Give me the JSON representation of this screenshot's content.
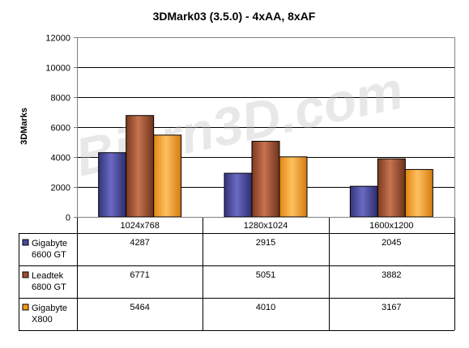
{
  "watermark": "Bjorn3D.com",
  "chart_data": {
    "type": "bar",
    "title": "3DMark03 (3.5.0) - 4xAA, 8xAF",
    "xlabel": "",
    "ylabel": "3DMarks",
    "ylim": [
      0,
      12000
    ],
    "yticks": [
      "0",
      "2000",
      "4000",
      "6000",
      "8000",
      "10000",
      "12000"
    ],
    "grid": true,
    "legend": "data-table",
    "categories": [
      "1024x768",
      "1280x1024",
      "1600x1200"
    ],
    "series": [
      {
        "name": "Gigabyte 6600 GT",
        "name_lines": [
          "Gigabyte",
          "6600 GT"
        ],
        "color": "#4a4a9c",
        "values": [
          4287,
          2915,
          2045
        ]
      },
      {
        "name": "Leadtek 6800 GT",
        "name_lines": [
          "Leadtek",
          "6800 GT"
        ],
        "color": "#a0502d",
        "values": [
          6771,
          5051,
          3882
        ]
      },
      {
        "name": "Gigabyte X800",
        "name_lines": [
          "Gigabyte",
          "X800"
        ],
        "color": "#f29a1a",
        "values": [
          5464,
          4010,
          3167
        ]
      }
    ]
  }
}
